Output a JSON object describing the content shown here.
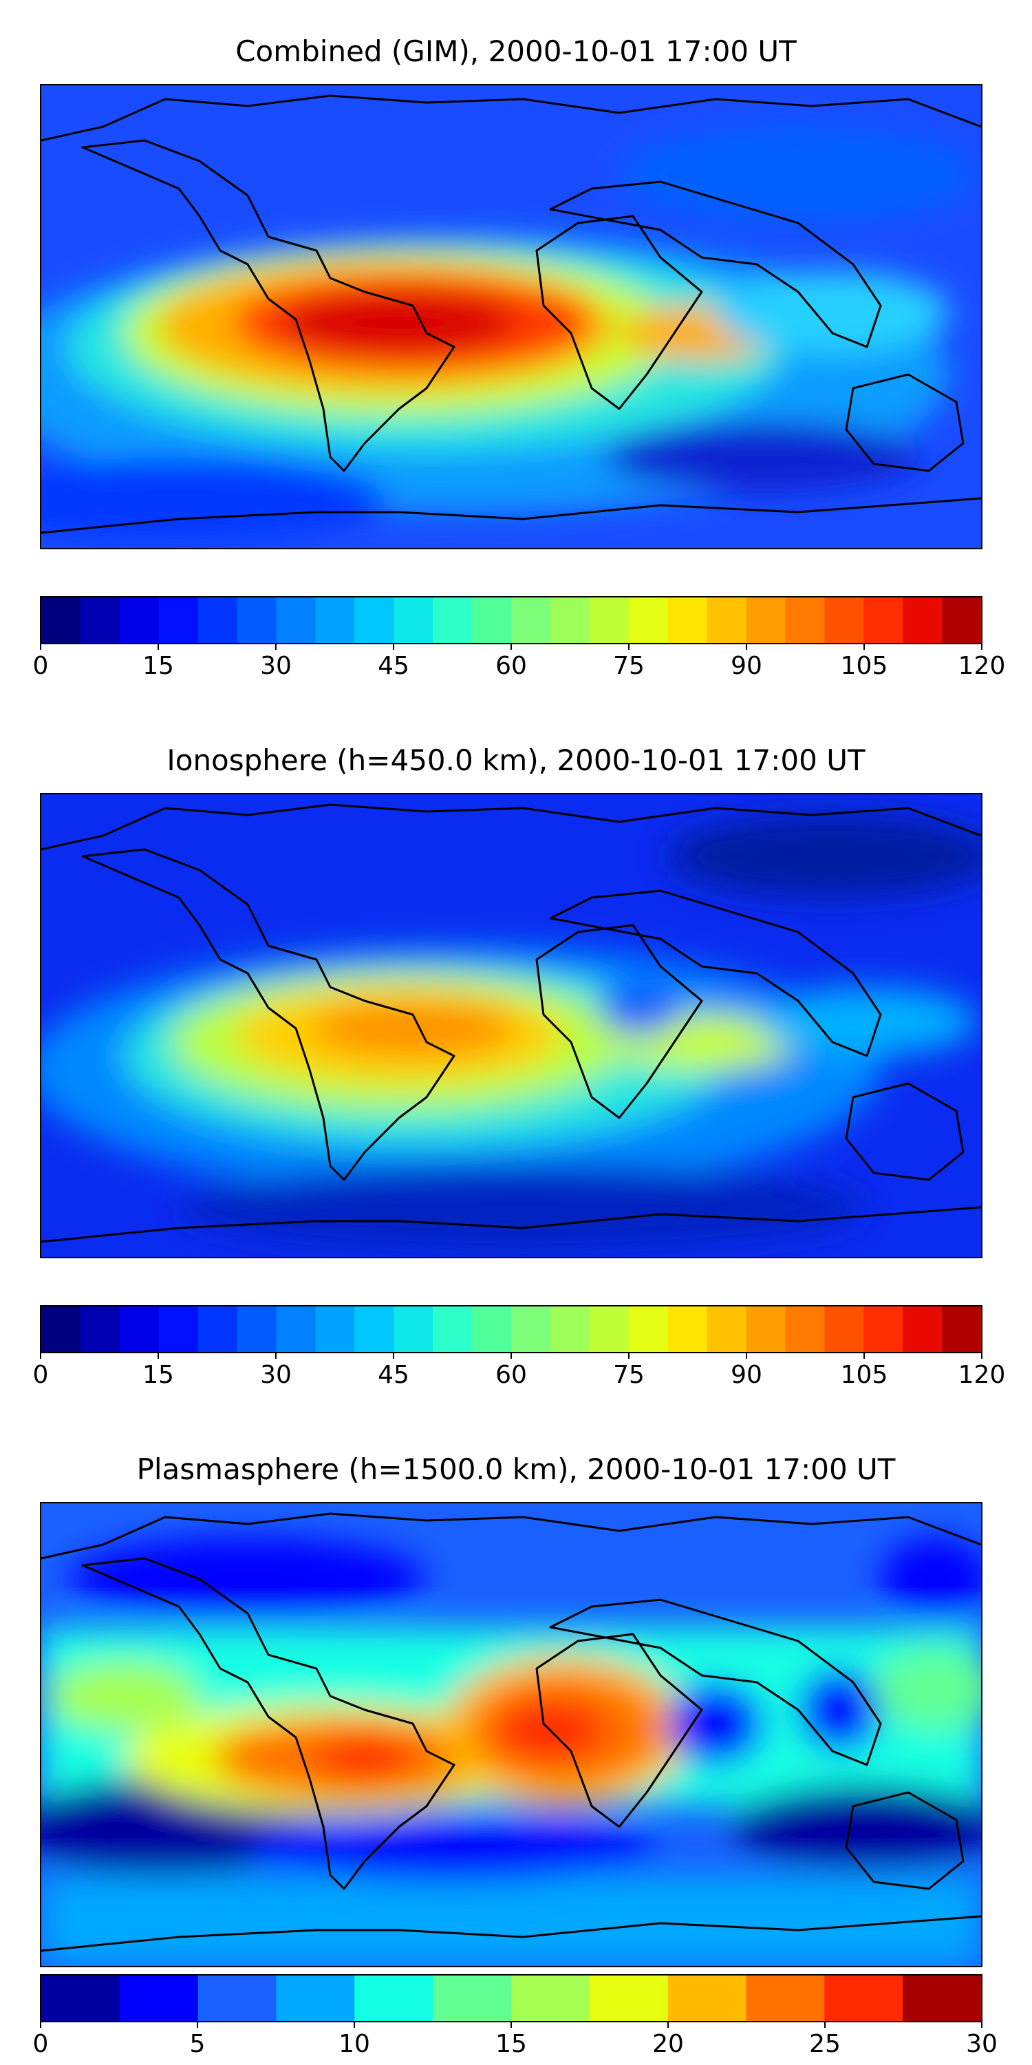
{
  "panels": [
    {
      "title": "Combined (GIM), 2000-10-01 17:00 UT",
      "colorbar": {
        "min": 0,
        "max": 120,
        "step": 5,
        "ticks": [
          "0",
          "15",
          "30",
          "45",
          "60",
          "75",
          "90",
          "105",
          "120"
        ],
        "colors": [
          "#00007f",
          "#0000b2",
          "#0000e8",
          "#0010ff",
          "#0034ff",
          "#005cff",
          "#0080ff",
          "#00a4ff",
          "#00c8ff",
          "#0ee8e8",
          "#2dffca",
          "#4eff9a",
          "#7eff7a",
          "#9eff59",
          "#c1ff36",
          "#e4ff13",
          "#ffe500",
          "#ffc100",
          "#ff9e00",
          "#ff7a00",
          "#ff5200",
          "#ff2e00",
          "#e80a00",
          "#b20000"
        ]
      }
    },
    {
      "title": "Ionosphere  (h=450.0 km), 2000-10-01 17:00 UT",
      "colorbar": {
        "min": 0,
        "max": 120,
        "step": 5,
        "ticks": [
          "0",
          "15",
          "30",
          "45",
          "60",
          "75",
          "90",
          "105",
          "120"
        ],
        "colors": [
          "#00007f",
          "#0000b2",
          "#0000e8",
          "#0010ff",
          "#0034ff",
          "#005cff",
          "#0080ff",
          "#00a4ff",
          "#00c8ff",
          "#0ee8e8",
          "#2dffca",
          "#4eff9a",
          "#7eff7a",
          "#9eff59",
          "#c1ff36",
          "#e4ff13",
          "#ffe500",
          "#ffc100",
          "#ff9e00",
          "#ff7a00",
          "#ff5200",
          "#ff2e00",
          "#e80a00",
          "#b20000"
        ]
      }
    },
    {
      "title": "Plasmasphere (h=1500.0 km), 2000-10-01 17:00 UT",
      "colorbar": {
        "min": 0,
        "max": 30,
        "step": 2.5,
        "ticks": [
          "0",
          "5",
          "10",
          "15",
          "20",
          "25",
          "30"
        ],
        "colors": [
          "#00009e",
          "#0000ff",
          "#1a60ff",
          "#00a8ff",
          "#13ffe3",
          "#62ff94",
          "#a6ff50",
          "#e6ff10",
          "#ffbb00",
          "#ff7200",
          "#ff2a00",
          "#a60000"
        ]
      }
    }
  ]
}
